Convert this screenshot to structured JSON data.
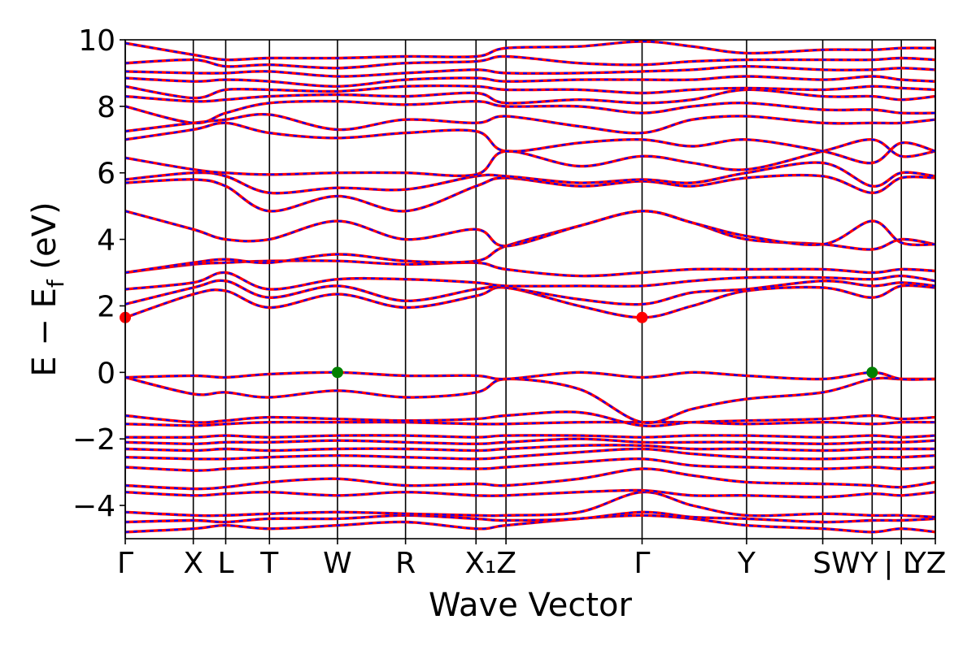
{
  "chart_data": {
    "type": "line",
    "title": "",
    "xlabel": "Wave Vector",
    "ylabel": "E − E_f (eV)",
    "ylabel_parts": {
      "main": "E − E",
      "sub": "f",
      "tail": " (eV)"
    },
    "ylim": [
      -5,
      10
    ],
    "yticks": [
      -4,
      -2,
      0,
      2,
      4,
      6,
      8,
      10
    ],
    "ytick_labels": [
      "−4",
      "−2",
      "0",
      "2",
      "4",
      "6",
      "8",
      "10"
    ],
    "grid": false,
    "legend": "none",
    "colors": {
      "band_solid": "#ff0000",
      "band_dashed": "#0000ff",
      "cbm_marker": "#ff0000",
      "vbm_marker": "#008000",
      "kpath_lines": "#000000"
    },
    "kpoints": [
      {
        "label": "Γ",
        "x": 0.0
      },
      {
        "label": "X",
        "x": 0.084
      },
      {
        "label": "L",
        "x": 0.124
      },
      {
        "label": "T",
        "x": 0.178
      },
      {
        "label": "W",
        "x": 0.262
      },
      {
        "label": "R",
        "x": 0.346
      },
      {
        "label": "X",
        "sub": "1",
        "x": 0.433
      },
      {
        "label": "Z",
        "x": 0.47
      },
      {
        "label": "Γ",
        "x": 0.638
      },
      {
        "label": "Y",
        "x": 0.767
      },
      {
        "label": "S",
        "x": 0.861
      },
      {
        "label": "W",
        "x": 0.892
      },
      {
        "label": "Y",
        "x": 0.922
      },
      {
        "label": "|",
        "x": 0.922
      },
      {
        "label": "L",
        "x": 0.958
      },
      {
        "label": "|",
        "x": 0.958
      },
      {
        "label": "I",
        "x": 0.978
      },
      {
        "label": "1",
        "x": 0.986
      },
      {
        "label": "I",
        "x": 0.99
      },
      {
        "label": "1",
        "x": 0.998
      },
      {
        "label": "Y",
        "x": 0.985
      },
      {
        "label": "Z",
        "x": 1.0
      }
    ],
    "kpath_display": [
      {
        "label": "Γ",
        "x": 0.0
      },
      {
        "label": "X",
        "x": 0.084
      },
      {
        "label": "L",
        "x": 0.124
      },
      {
        "label": "T",
        "x": 0.178
      },
      {
        "label": "W",
        "x": 0.262
      },
      {
        "label": "R",
        "x": 0.346
      },
      {
        "label": "X₁Z",
        "x": 0.451
      },
      {
        "label": "Γ",
        "x": 0.638
      },
      {
        "label": "Y",
        "x": 0.767
      },
      {
        "label": "SWY",
        "x": 0.889
      },
      {
        "label": "| L",
        "x": 0.958
      },
      {
        "label": "YZ",
        "x": 0.99
      }
    ],
    "vertical_lines": [
      0.0,
      0.084,
      0.124,
      0.178,
      0.262,
      0.346,
      0.433,
      0.47,
      0.638,
      0.767,
      0.861,
      0.922,
      0.958,
      1.0
    ],
    "x_control_points": [
      0.0,
      0.084,
      0.124,
      0.178,
      0.262,
      0.346,
      0.433,
      0.47,
      0.56,
      0.638,
      0.7,
      0.767,
      0.861,
      0.922,
      0.958,
      1.0
    ],
    "series": [
      {
        "values": [
          -4.8,
          -4.7,
          -4.6,
          -4.7,
          -4.6,
          -4.5,
          -4.7,
          -4.6,
          -4.4,
          -4.3,
          -4.4,
          -4.6,
          -4.7,
          -4.8,
          -4.7,
          -4.8
        ]
      },
      {
        "values": [
          -4.5,
          -4.45,
          -4.5,
          -4.4,
          -4.4,
          -4.3,
          -4.4,
          -4.45,
          -4.4,
          -4.2,
          -4.35,
          -4.4,
          -4.5,
          -4.45,
          -4.45,
          -4.4
        ]
      },
      {
        "values": [
          -4.2,
          -4.3,
          -4.3,
          -4.25,
          -4.2,
          -4.25,
          -4.3,
          -4.3,
          -4.2,
          -3.6,
          -4.0,
          -4.3,
          -4.25,
          -4.3,
          -4.3,
          -4.35
        ]
      },
      {
        "values": [
          -3.6,
          -3.7,
          -3.65,
          -3.6,
          -3.7,
          -3.6,
          -3.7,
          -3.7,
          -3.6,
          -3.55,
          -3.7,
          -3.7,
          -3.75,
          -3.65,
          -3.7,
          -3.6
        ]
      },
      {
        "values": [
          -3.4,
          -3.5,
          -3.45,
          -3.3,
          -3.2,
          -3.4,
          -3.35,
          -3.4,
          -3.2,
          -2.9,
          -3.1,
          -3.3,
          -3.35,
          -3.4,
          -3.45,
          -3.3
        ]
      },
      {
        "values": [
          -2.85,
          -2.95,
          -2.9,
          -2.85,
          -2.8,
          -2.85,
          -2.9,
          -2.85,
          -2.7,
          -2.6,
          -2.8,
          -2.85,
          -2.9,
          -2.85,
          -2.9,
          -2.85
        ]
      },
      {
        "values": [
          -2.55,
          -2.6,
          -2.6,
          -2.55,
          -2.5,
          -2.55,
          -2.6,
          -2.55,
          -2.4,
          -2.3,
          -2.45,
          -2.55,
          -2.6,
          -2.55,
          -2.55,
          -2.5
        ]
      },
      {
        "values": [
          -2.3,
          -2.35,
          -2.3,
          -2.35,
          -2.3,
          -2.3,
          -2.35,
          -2.3,
          -2.2,
          -2.2,
          -2.3,
          -2.3,
          -2.35,
          -2.3,
          -2.3,
          -2.3
        ]
      },
      {
        "values": [
          -2.1,
          -2.15,
          -2.1,
          -2.1,
          -2.05,
          -2.1,
          -2.15,
          -2.1,
          -2.0,
          -2.1,
          -2.1,
          -2.1,
          -2.15,
          -2.1,
          -2.1,
          -2.05
        ]
      },
      {
        "values": [
          -1.95,
          -1.95,
          -1.9,
          -1.95,
          -1.9,
          -1.9,
          -1.95,
          -1.9,
          -1.9,
          -1.95,
          -1.9,
          -1.9,
          -1.95,
          -1.9,
          -1.95,
          -1.9
        ]
      },
      {
        "values": [
          -1.55,
          -1.6,
          -1.55,
          -1.5,
          -1.5,
          -1.5,
          -1.55,
          -1.55,
          -1.5,
          -1.5,
          -1.5,
          -1.55,
          -1.5,
          -1.55,
          -1.5,
          -1.5
        ]
      },
      {
        "values": [
          -1.3,
          -1.5,
          -1.45,
          -1.35,
          -1.4,
          -1.45,
          -1.4,
          -1.3,
          -1.2,
          -1.6,
          -1.5,
          -1.45,
          -1.4,
          -1.3,
          -1.4,
          -1.35
        ]
      },
      {
        "values": [
          -0.15,
          -0.65,
          -0.6,
          -0.75,
          -0.55,
          -0.75,
          -0.6,
          -0.2,
          -0.5,
          -1.5,
          -1.1,
          -0.8,
          -0.6,
          -0.2,
          -0.2,
          -0.2
        ]
      },
      {
        "values": [
          -0.15,
          -0.1,
          -0.15,
          -0.05,
          0.0,
          -0.1,
          -0.1,
          -0.2,
          0.0,
          -0.15,
          0.0,
          -0.1,
          -0.2,
          0.0,
          -0.2,
          -0.2
        ]
      },
      {
        "values": [
          1.65,
          2.35,
          2.45,
          1.95,
          2.35,
          1.95,
          2.3,
          2.55,
          2.0,
          1.65,
          2.0,
          2.45,
          2.55,
          2.25,
          2.6,
          2.55
        ]
      },
      {
        "values": [
          2.05,
          2.55,
          2.75,
          2.25,
          2.6,
          2.15,
          2.5,
          2.55,
          2.2,
          2.05,
          2.4,
          2.5,
          2.75,
          2.6,
          2.7,
          2.6
        ]
      },
      {
        "values": [
          2.5,
          2.7,
          3.0,
          2.5,
          2.8,
          2.8,
          2.7,
          2.6,
          2.6,
          2.6,
          2.75,
          2.85,
          2.85,
          2.8,
          2.9,
          2.75
        ]
      },
      {
        "values": [
          3.0,
          3.25,
          3.3,
          3.35,
          3.35,
          3.25,
          3.3,
          3.1,
          2.9,
          3.0,
          3.1,
          3.1,
          3.1,
          3.0,
          3.1,
          3.05
        ]
      },
      {
        "values": [
          3.0,
          3.3,
          3.4,
          3.3,
          3.55,
          3.35,
          3.35,
          3.8,
          4.4,
          4.85,
          4.5,
          4.0,
          3.85,
          3.7,
          4.0,
          3.85
        ]
      },
      {
        "values": [
          4.85,
          4.3,
          4.0,
          4.0,
          4.55,
          4.0,
          4.3,
          3.8,
          4.4,
          4.85,
          4.5,
          4.1,
          3.85,
          4.55,
          3.9,
          3.85
        ]
      },
      {
        "values": [
          5.7,
          5.8,
          5.6,
          4.85,
          5.3,
          4.85,
          5.6,
          5.85,
          5.6,
          5.75,
          5.6,
          5.85,
          5.9,
          5.4,
          5.85,
          5.85
        ]
      },
      {
        "values": [
          5.8,
          6.0,
          5.9,
          5.4,
          5.55,
          5.5,
          5.9,
          5.9,
          5.7,
          5.8,
          5.7,
          6.0,
          6.3,
          5.6,
          6.0,
          5.9
        ]
      },
      {
        "values": [
          6.45,
          6.1,
          6.0,
          5.95,
          6.0,
          6.0,
          5.95,
          6.65,
          6.2,
          6.5,
          6.3,
          6.1,
          6.65,
          7.0,
          6.5,
          6.65
        ]
      },
      {
        "values": [
          7.0,
          7.3,
          7.5,
          7.2,
          7.05,
          7.2,
          7.25,
          6.65,
          6.9,
          7.0,
          6.8,
          7.0,
          6.65,
          6.3,
          6.9,
          6.65
        ]
      },
      {
        "values": [
          7.25,
          7.5,
          7.6,
          7.75,
          7.3,
          7.6,
          7.5,
          7.7,
          7.4,
          7.2,
          7.6,
          7.7,
          7.5,
          7.5,
          7.5,
          7.6
        ]
      },
      {
        "values": [
          8.0,
          7.5,
          7.8,
          8.1,
          8.15,
          8.05,
          8.15,
          8.0,
          8.0,
          7.8,
          8.0,
          8.1,
          7.9,
          7.9,
          7.8,
          7.8
        ]
      },
      {
        "values": [
          8.3,
          8.15,
          8.2,
          8.3,
          8.35,
          8.3,
          8.4,
          8.1,
          8.2,
          8.1,
          8.2,
          8.5,
          8.3,
          8.3,
          8.2,
          8.3
        ]
      },
      {
        "values": [
          8.6,
          8.25,
          8.5,
          8.5,
          8.45,
          8.6,
          8.6,
          8.5,
          8.5,
          8.4,
          8.5,
          8.55,
          8.5,
          8.6,
          8.55,
          8.5
        ]
      },
      {
        "values": [
          8.85,
          8.75,
          8.8,
          8.75,
          8.6,
          8.8,
          8.85,
          8.75,
          8.8,
          8.8,
          8.8,
          8.9,
          8.8,
          8.9,
          8.8,
          8.75
        ]
      },
      {
        "values": [
          9.05,
          9.0,
          9.0,
          9.05,
          8.9,
          9.0,
          9.1,
          9.0,
          9.0,
          9.05,
          9.1,
          9.2,
          9.1,
          9.1,
          9.15,
          9.1
        ]
      },
      {
        "values": [
          9.3,
          9.4,
          9.2,
          9.25,
          9.15,
          9.3,
          9.35,
          9.5,
          9.3,
          9.25,
          9.35,
          9.4,
          9.4,
          9.4,
          9.45,
          9.4
        ]
      },
      {
        "values": [
          9.9,
          9.55,
          9.4,
          9.45,
          9.45,
          9.5,
          9.5,
          9.75,
          9.8,
          9.95,
          9.8,
          9.6,
          9.7,
          9.7,
          9.75,
          9.75
        ]
      }
    ],
    "markers": [
      {
        "x": 0.0,
        "y": 1.65,
        "color": "#ff0000",
        "kind": "cbm"
      },
      {
        "x": 0.638,
        "y": 1.65,
        "color": "#ff0000",
        "kind": "cbm"
      },
      {
        "x": 0.262,
        "y": 0.0,
        "color": "#008000",
        "kind": "vbm"
      },
      {
        "x": 0.922,
        "y": 0.0,
        "color": "#008000",
        "kind": "vbm"
      }
    ]
  }
}
